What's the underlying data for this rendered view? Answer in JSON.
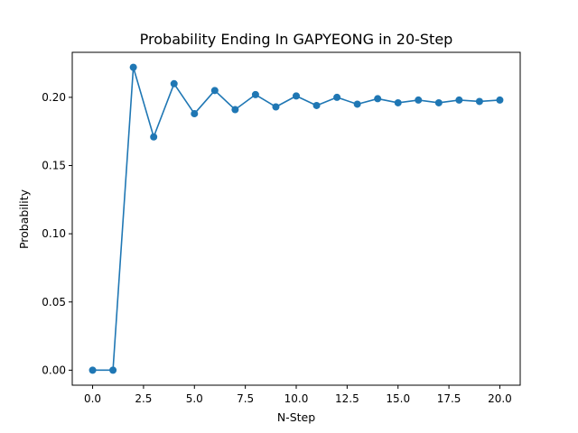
{
  "chart_data": {
    "type": "line",
    "title": "Probability Ending In  GAPYEONG in 20-Step",
    "xlabel": "N-Step",
    "ylabel": "Probability",
    "xlim": [
      -1.0,
      21.0
    ],
    "ylim": [
      -0.011,
      0.233
    ],
    "xticks": [
      0.0,
      2.5,
      5.0,
      7.5,
      10.0,
      12.5,
      15.0,
      17.5,
      20.0
    ],
    "xtick_labels": [
      "0.0",
      "2.5",
      "5.0",
      "7.5",
      "10.0",
      "12.5",
      "15.0",
      "17.5",
      "20.0"
    ],
    "yticks": [
      0.0,
      0.05,
      0.1,
      0.15,
      0.2
    ],
    "ytick_labels": [
      "0.00",
      "0.05",
      "0.10",
      "0.15",
      "0.20"
    ],
    "grid": false,
    "legend": "none",
    "color": "#1f77b4",
    "series": [
      {
        "x": [
          0,
          1,
          2,
          3,
          4,
          5,
          6,
          7,
          8,
          9,
          10,
          11,
          12,
          13,
          14,
          15,
          16,
          17,
          18,
          19,
          20
        ],
        "y": [
          0.0,
          0.0,
          0.222,
          0.171,
          0.21,
          0.188,
          0.205,
          0.191,
          0.202,
          0.193,
          0.201,
          0.194,
          0.2,
          0.195,
          0.199,
          0.196,
          0.198,
          0.196,
          0.198,
          0.197,
          0.198
        ]
      }
    ]
  }
}
